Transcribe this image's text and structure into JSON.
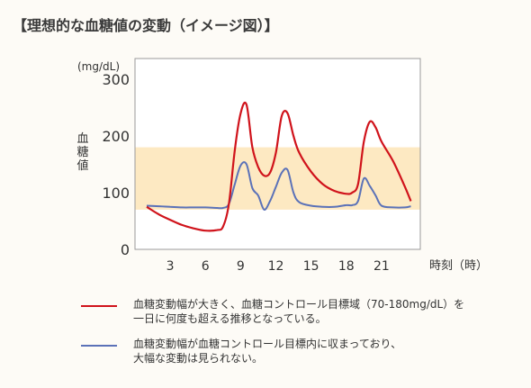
{
  "title": "【理想的な血糖値の変動（イメージ図）】",
  "colors": {
    "background": "#fdfbf6",
    "plot_bg": "#ffffff",
    "target_band": "#fde9c2",
    "fluctuating": "#d0131b",
    "stable": "#5b72b8"
  },
  "legend": {
    "fluctuating": {
      "line1": "血糖変動幅が大きく、血糖コントロール目標域（70-180mg/dL）を",
      "line2": "一日に何度も超える推移となっている。"
    },
    "stable": {
      "line1": "血糖変動幅が血糖コントロール目標内に収まっており、",
      "line2": "大幅な変動は見られない。"
    }
  },
  "chart_data": {
    "type": "line",
    "unit": "(mg/dL)",
    "ylabel": "血\n糖\n値",
    "xlabel": "時刻（時）",
    "xlim": [
      0,
      24
    ],
    "ylim": [
      0,
      300
    ],
    "xticks": [
      3,
      6,
      9,
      12,
      15,
      18,
      21
    ],
    "yticks": [
      0,
      100,
      200,
      300
    ],
    "target_range": [
      70,
      180
    ],
    "grid": false,
    "legend_position": "bottom",
    "series": [
      {
        "key": "fluctuating",
        "x": [
          1,
          2,
          3,
          4,
          5,
          6,
          7,
          7.5,
          8,
          8.5,
          9,
          9.5,
          10,
          10.5,
          11,
          11.5,
          12,
          12.5,
          13,
          13.5,
          14,
          15,
          16,
          17,
          18,
          18.5,
          19,
          19.5,
          20,
          20.5,
          21,
          22,
          23,
          23.5
        ],
        "y": [
          75,
          62,
          52,
          43,
          37,
          33,
          34,
          40,
          80,
          175,
          240,
          255,
          180,
          145,
          130,
          135,
          170,
          235,
          240,
          200,
          170,
          137,
          115,
          103,
          98,
          100,
          115,
          190,
          225,
          215,
          190,
          155,
          110,
          85
        ]
      },
      {
        "key": "stable",
        "x": [
          1,
          2,
          3,
          4,
          5,
          6,
          7,
          7.5,
          8,
          8.5,
          9,
          9.5,
          10,
          10.5,
          11,
          11.5,
          12,
          12.5,
          13,
          13.5,
          14,
          15,
          16,
          17,
          18,
          18.5,
          19,
          19.5,
          20,
          20.5,
          21,
          22,
          23,
          23.5
        ],
        "y": [
          77,
          76,
          75,
          74,
          74,
          74,
          73,
          73,
          80,
          115,
          148,
          150,
          108,
          95,
          70,
          85,
          110,
          135,
          140,
          100,
          83,
          77,
          75,
          75,
          78,
          78,
          85,
          125,
          112,
          95,
          77,
          74,
          74,
          76
        ]
      }
    ]
  }
}
